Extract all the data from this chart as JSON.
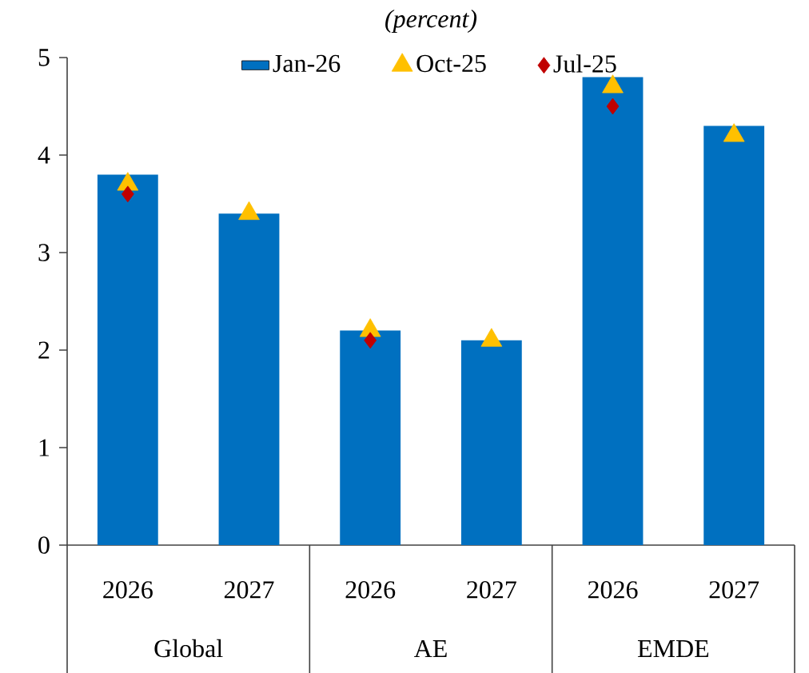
{
  "chart_data": {
    "type": "bar",
    "subtitle": "(percent)",
    "categories": [
      "2026",
      "2027",
      "2026",
      "2027",
      "2026",
      "2027"
    ],
    "series": [
      {
        "name": "Jan-26",
        "color": "#0070c0",
        "values": [
          3.8,
          3.4,
          2.2,
          2.1,
          4.8,
          4.3
        ]
      },
      {
        "name": "Oct-25",
        "type": "scatter",
        "marker": "triangle",
        "color": "#ffc000",
        "values": [
          3.7,
          3.4,
          2.2,
          2.1,
          4.7,
          4.2
        ]
      },
      {
        "name": "Jul-25",
        "type": "scatter",
        "marker": "diamond",
        "color": "#c00000",
        "values": [
          3.6,
          null,
          2.1,
          null,
          4.5,
          null
        ]
      }
    ],
    "annotations": [
      "Global",
      "AE",
      "EMDE"
    ],
    "ylim": [
      0,
      5
    ],
    "yticks": [
      0,
      1,
      2,
      3,
      4,
      5
    ],
    "legend": "top"
  }
}
